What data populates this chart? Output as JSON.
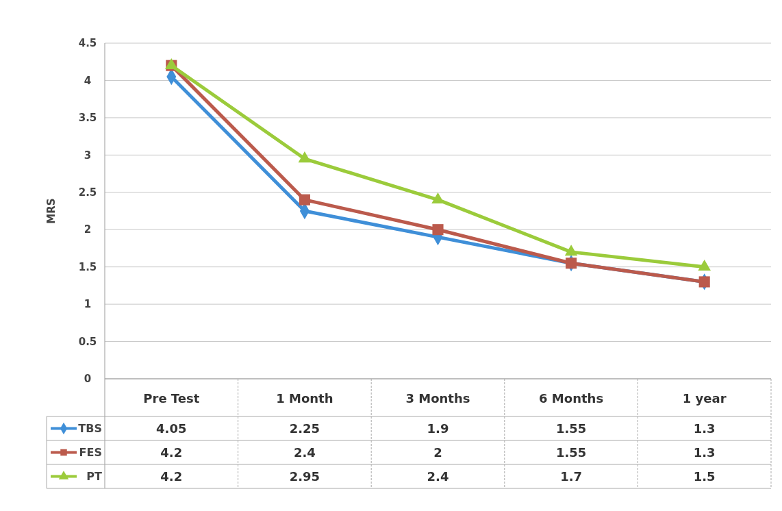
{
  "chart_data": {
    "type": "line",
    "ylabel": "MRS",
    "categories": [
      "Pre Test",
      "1 Month",
      "3 Months",
      "6 Months",
      "1 year"
    ],
    "series": [
      {
        "name": "TBS",
        "color": "#3f8fd8",
        "marker": "diamond",
        "values": [
          4.05,
          2.25,
          1.9,
          1.55,
          1.3
        ]
      },
      {
        "name": "FES",
        "color": "#bb5a4c",
        "marker": "square",
        "values": [
          4.2,
          2.4,
          2,
          1.55,
          1.3
        ]
      },
      {
        "name": "PT",
        "color": "#9bcb3b",
        "marker": "triangle",
        "values": [
          4.2,
          2.95,
          2.4,
          1.7,
          1.5
        ]
      }
    ],
    "ylim": [
      0,
      4.5
    ],
    "yticks": [
      0,
      0.5,
      1,
      1.5,
      2,
      2.5,
      3,
      3.5,
      4,
      4.5
    ],
    "grid": "y",
    "legend": "bottom left",
    "data_labels": true,
    "line_style": "solid"
  }
}
